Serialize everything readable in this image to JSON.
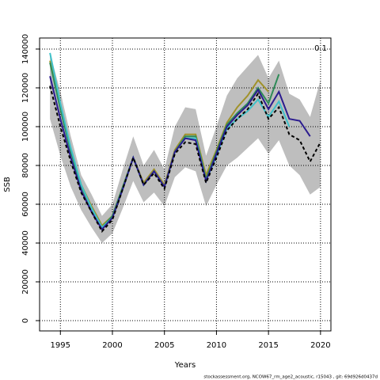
{
  "chart_data": {
    "type": "line",
    "x_label": "Years",
    "y_label": "SSB",
    "annotation": "0.1",
    "footer": "stockassessment.org, NCOW67_rm_age2_acoustic, r15043 , git: 69d926d0437d",
    "x": [
      1994,
      1995,
      1996,
      1997,
      1998,
      1999,
      2000,
      2001,
      2002,
      2003,
      2004,
      2005,
      2006,
      2007,
      2008,
      2009,
      2010,
      2011,
      2012,
      2013,
      2014,
      2015,
      2016,
      2017,
      2018,
      2019,
      2020
    ],
    "xlim": [
      1993,
      2021
    ],
    "xticks": [
      1995,
      2000,
      2005,
      2010,
      2015,
      2020
    ],
    "ylim": [
      -5300,
      145700
    ],
    "yticks": [
      0,
      20000,
      40000,
      60000,
      80000,
      100000,
      120000,
      140000
    ],
    "grid": true,
    "band": {
      "color": "#bebebe",
      "upper": [
        138000,
        118000,
        95000,
        75000,
        65000,
        54000,
        60000,
        78000,
        95000,
        80000,
        88000,
        78000,
        100000,
        110000,
        109000,
        85000,
        100000,
        116000,
        125000,
        131000,
        137000,
        125000,
        134000,
        117000,
        114000,
        105000,
        124000
      ],
      "lower": [
        104000,
        85000,
        69000,
        57000,
        48000,
        40000,
        45000,
        58000,
        72000,
        61000,
        66000,
        59000,
        74000,
        79000,
        77000,
        59000,
        70000,
        80000,
        84000,
        89000,
        94000,
        86000,
        93000,
        80000,
        75000,
        65000,
        69000
      ]
    },
    "series": [
      {
        "color": "#a0922a",
        "values": [
          134000,
          110000,
          88000,
          70000,
          59000,
          49000,
          54000,
          69000,
          84000,
          71000,
          78000,
          70000,
          88000,
          96000,
          96000,
          75000,
          88000,
          102000,
          110000,
          116000,
          124000,
          118000,
          null,
          null,
          null,
          null,
          null
        ]
      },
      {
        "color": "#2e8b57",
        "values": [
          133000,
          109000,
          87000,
          69000,
          58000,
          48000,
          54000,
          69000,
          84000,
          70000,
          77000,
          69000,
          87000,
          95000,
          95000,
          73000,
          87000,
          101000,
          107000,
          112000,
          120000,
          112000,
          127000,
          null,
          null,
          null,
          null
        ]
      },
      {
        "color": "#3fc1c9",
        "values": [
          138000,
          112000,
          89000,
          70000,
          58000,
          48000,
          53000,
          68000,
          84000,
          70000,
          77000,
          69000,
          87000,
          94000,
          94000,
          72000,
          85000,
          99000,
          104000,
          108000,
          114000,
          105000,
          113000,
          100000,
          null,
          null,
          null
        ]
      },
      {
        "color": "#2b1b8f",
        "values": [
          126000,
          104000,
          84000,
          67000,
          56000,
          47000,
          53000,
          68000,
          84000,
          70000,
          77000,
          69000,
          87000,
          94000,
          93000,
          72000,
          86000,
          100000,
          106000,
          111000,
          119000,
          109000,
          118000,
          104000,
          103000,
          95000,
          null
        ]
      },
      {
        "color": "#000000",
        "dash": true,
        "values": [
          121000,
          100000,
          82000,
          66000,
          56000,
          46000,
          52000,
          68000,
          84000,
          70000,
          76000,
          68000,
          86000,
          92000,
          91000,
          71000,
          84000,
          98000,
          104000,
          109000,
          117000,
          104000,
          110000,
          96000,
          93000,
          82000,
          92000
        ]
      }
    ]
  }
}
